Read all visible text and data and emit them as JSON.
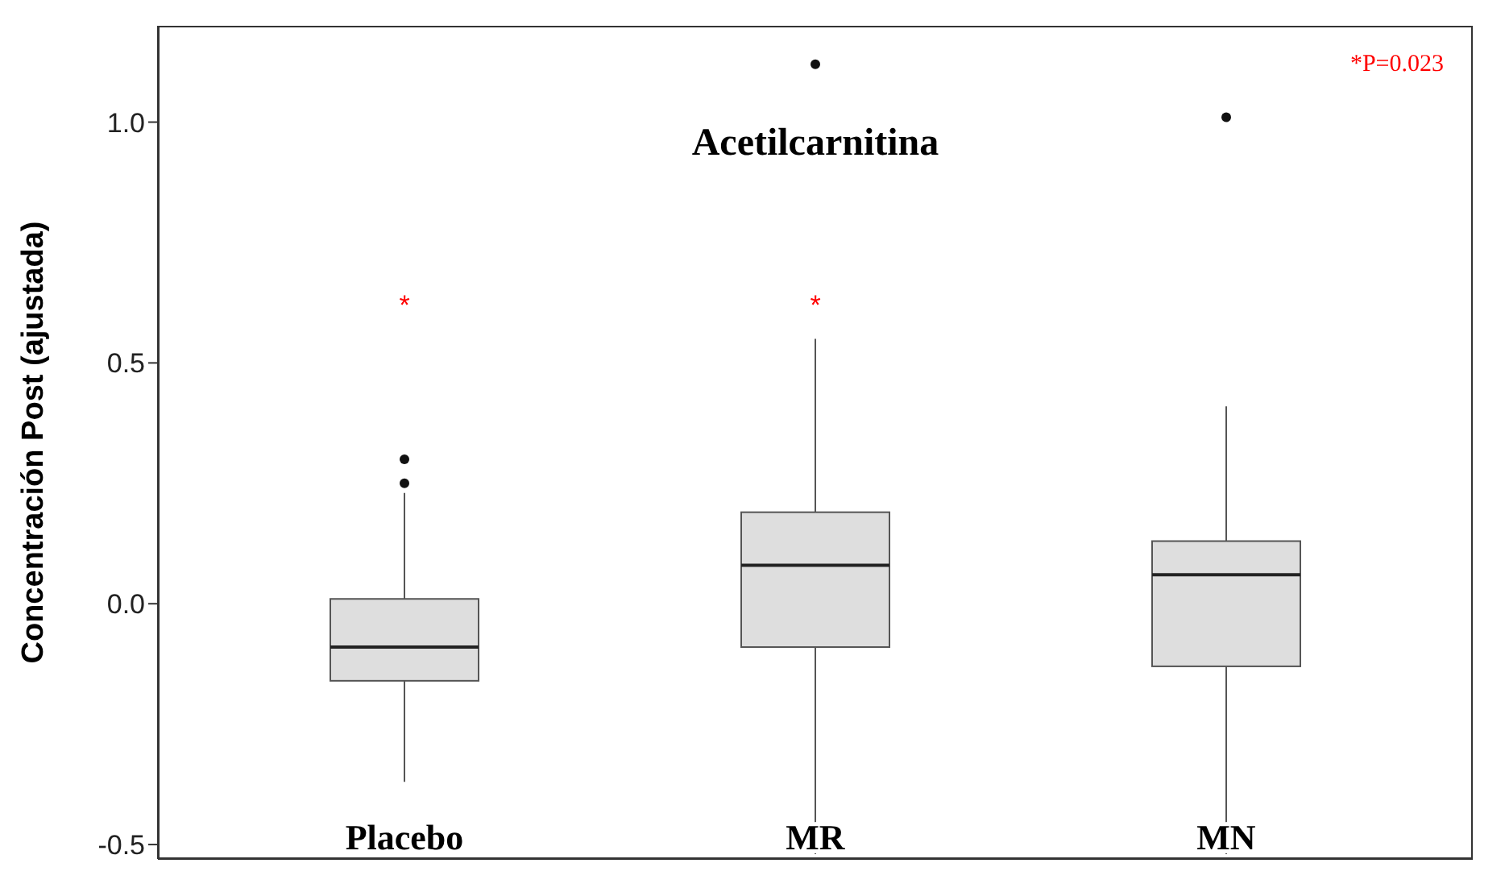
{
  "chart_data": {
    "type": "box",
    "title": "Acetilcarnitina",
    "ylabel": "Concentración Post (ajustada)",
    "categories": [
      "Placebo",
      "MR",
      "MN"
    ],
    "color": "#dedede",
    "boxes": [
      {
        "low": -0.37,
        "q1": -0.16,
        "median": -0.09,
        "q3": 0.01,
        "high": 0.23,
        "outliers": [
          0.3,
          0.25
        ]
      },
      {
        "low": -0.52,
        "q1": -0.09,
        "median": 0.08,
        "q3": 0.19,
        "high": 0.55,
        "outliers": [
          1.12
        ]
      },
      {
        "low": -0.52,
        "q1": -0.13,
        "median": 0.06,
        "q3": 0.13,
        "high": 0.41,
        "outliers": [
          1.01
        ]
      }
    ],
    "ylim": [
      -0.53,
      1.2
    ],
    "yticks": [
      {
        "value": -0.5,
        "label": "-0.5"
      },
      {
        "value": 0,
        "label": "0.0"
      },
      {
        "value": 0.5,
        "label": "0.5"
      },
      {
        "value": 1,
        "label": "1.0"
      }
    ],
    "annotations": [
      "*",
      "*",
      "*P=0.023"
    ]
  }
}
